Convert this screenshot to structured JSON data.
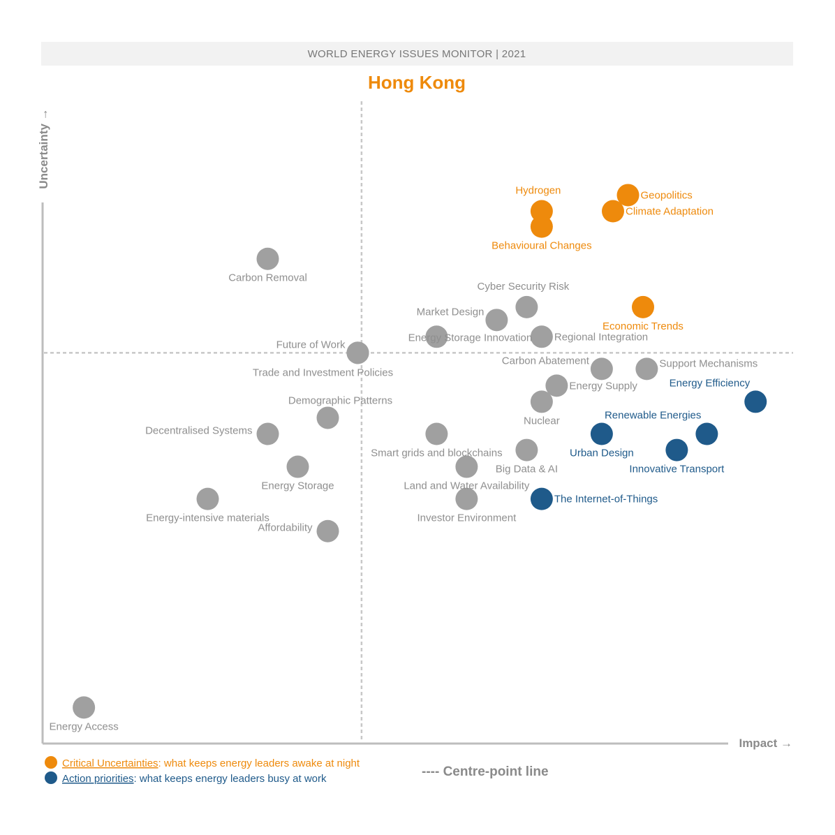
{
  "header": {
    "banner": "WORLD ENERGY ISSUES MONITOR | 2021"
  },
  "colors": {
    "critical": "#ee8a0c",
    "action": "#1f5a8a",
    "other": "#a0a0a0",
    "axis": "#bdbdbd"
  },
  "chart_data": {
    "type": "scatter",
    "title": "Hong Kong",
    "xlabel": "Impact →",
    "ylabel": "Uncertainty →",
    "xlim": [
      0,
      100
    ],
    "ylim": [
      0,
      100
    ],
    "centre": {
      "x": 42.5,
      "y": 60.7
    },
    "points": [
      {
        "label": "Geopolitics",
        "x": 78,
        "y": 85.2,
        "category": "critical",
        "anchor": "right"
      },
      {
        "label": "Hydrogen",
        "x": 66.5,
        "y": 82.7,
        "category": "critical",
        "anchor": "above"
      },
      {
        "label": "Climate Adaptation",
        "x": 76,
        "y": 82.7,
        "category": "critical",
        "anchor": "right"
      },
      {
        "label": "Behavioural Changes",
        "x": 66.5,
        "y": 80.3,
        "category": "critical",
        "anchor": "below"
      },
      {
        "label": "Carbon Removal",
        "x": 30,
        "y": 75.3,
        "category": "other",
        "anchor": "below"
      },
      {
        "label": "Cyber Security Risk",
        "x": 64.5,
        "y": 67.8,
        "category": "other",
        "anchor": "above"
      },
      {
        "label": "Economic Trends",
        "x": 80,
        "y": 67.8,
        "category": "critical",
        "anchor": "below"
      },
      {
        "label": "Market Design",
        "x": 60.5,
        "y": 65.8,
        "category": "other",
        "anchor": "left-up"
      },
      {
        "label": "Energy Storage Innovation",
        "x": 52.5,
        "y": 63.2,
        "category": "other",
        "anchor": "below-right"
      },
      {
        "label": "Regional Integration",
        "x": 66.5,
        "y": 63.2,
        "category": "other",
        "anchor": "right"
      },
      {
        "label": "Future of Work",
        "x": 42,
        "y": 60.7,
        "category": "other",
        "anchor": "left-up"
      },
      {
        "label": "Trade and Investment Policies",
        "x": 42,
        "y": 60.7,
        "category": "other",
        "anchor": "below-left"
      },
      {
        "label": "Carbon Abatement",
        "x": 74.5,
        "y": 58.2,
        "category": "other",
        "anchor": "left-up"
      },
      {
        "label": "Support Mechanisms",
        "x": 80.5,
        "y": 58.2,
        "category": "other",
        "anchor": "right-up"
      },
      {
        "label": "Energy Supply",
        "x": 68.5,
        "y": 55.6,
        "category": "other",
        "anchor": "right"
      },
      {
        "label": "Energy Efficiency",
        "x": 95,
        "y": 53.1,
        "category": "action",
        "anchor": "above-left"
      },
      {
        "label": "Nuclear",
        "x": 66.5,
        "y": 53.1,
        "category": "other",
        "anchor": "below"
      },
      {
        "label": "Demographic Patterns",
        "x": 38,
        "y": 50.6,
        "category": "other",
        "anchor": "above-right"
      },
      {
        "label": "Decentralised Systems",
        "x": 30,
        "y": 48.1,
        "category": "other",
        "anchor": "left"
      },
      {
        "label": "Smart grids and blockchains",
        "x": 52.5,
        "y": 48.1,
        "category": "other",
        "anchor": "below"
      },
      {
        "label": "Urban Design",
        "x": 74.5,
        "y": 48.1,
        "category": "action",
        "anchor": "below"
      },
      {
        "label": "Renewable Energies",
        "x": 88.5,
        "y": 48.1,
        "category": "action",
        "anchor": "above-left"
      },
      {
        "label": "Big Data & AI",
        "x": 64.5,
        "y": 45.6,
        "category": "other",
        "anchor": "below"
      },
      {
        "label": "Innovative Transport",
        "x": 84.5,
        "y": 45.6,
        "category": "action",
        "anchor": "below"
      },
      {
        "label": "Energy Storage",
        "x": 34,
        "y": 43.0,
        "category": "other",
        "anchor": "below"
      },
      {
        "label": "Land and Water Availability",
        "x": 56.5,
        "y": 43.0,
        "category": "other",
        "anchor": "below"
      },
      {
        "label": "Energy-intensive materials",
        "x": 22,
        "y": 38.0,
        "category": "other",
        "anchor": "below"
      },
      {
        "label": "Investor Environment",
        "x": 56.5,
        "y": 38.0,
        "category": "other",
        "anchor": "below"
      },
      {
        "label": "The Internet-of-Things",
        "x": 66.5,
        "y": 38.0,
        "category": "action",
        "anchor": "right"
      },
      {
        "label": "Affordability",
        "x": 38,
        "y": 33.0,
        "category": "other",
        "anchor": "left"
      },
      {
        "label": "Energy Access",
        "x": 5.5,
        "y": 5.6,
        "category": "other",
        "anchor": "below"
      }
    ],
    "grid": false
  },
  "legend": {
    "critical_title": "Critical Uncertainties",
    "critical_desc": ": what keeps energy leaders awake at night",
    "action_title": "Action priorities",
    "action_desc": ": what keeps energy leaders busy at work",
    "centre_line": "---- Centre-point line"
  }
}
